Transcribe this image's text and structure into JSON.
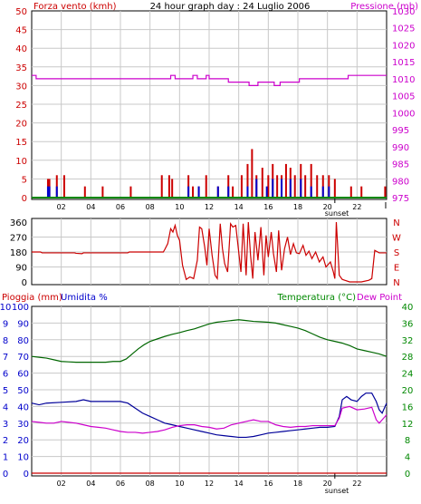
{
  "header": {
    "left_title": "Forza vento (kmh)",
    "center_title": "24 hour graph day : 24 Luglio 2006",
    "right_title": "Pressione (mb)"
  },
  "colors": {
    "wind": "#cc0000",
    "pressure": "#cc00cc",
    "grid": "#c8c8c8",
    "temperature": "#006600",
    "dewpoint": "#cc00cc",
    "humidity": "#000099",
    "rain": "#cc0000",
    "green_axis": "#008800",
    "blue_axis": "#0000cc"
  },
  "chart_data": [
    {
      "type": "bar",
      "title": "24 hour graph day : 24 Luglio 2006",
      "ylabel_left": "Forza vento (kmh)",
      "ylabel_right": "Pressione (mb)",
      "ylim_left": [
        0,
        50
      ],
      "ylim_right": [
        975,
        1030
      ],
      "yticks_left": [
        "0",
        "5",
        "10",
        "15",
        "20",
        "25",
        "30",
        "35",
        "40",
        "45",
        "50"
      ],
      "yticks_right": [
        "975",
        "980",
        "985",
        "990",
        "995",
        "1000",
        "1005",
        "1010",
        "1015",
        "1020",
        "1025",
        "1030"
      ],
      "xlim": [
        0,
        24
      ],
      "xticks": [
        {
          "x": 2,
          "label": "02"
        },
        {
          "x": 4,
          "label": "04"
        },
        {
          "x": 6,
          "label": "06"
        },
        {
          "x": 8,
          "label": "08"
        },
        {
          "x": 10,
          "label": "10"
        },
        {
          "x": 12,
          "label": "12"
        },
        {
          "x": 14,
          "label": "14"
        },
        {
          "x": 16,
          "label": "16"
        },
        {
          "x": 18,
          "label": "18"
        },
        {
          "x": 20,
          "label": "20"
        },
        {
          "x": 22,
          "label": "22"
        }
      ],
      "end_label": "I",
      "sunset_label": "sunset",
      "sunset_hour": 20.5,
      "wind_gust": [
        [
          1.1,
          5
        ],
        [
          1.2,
          5
        ],
        [
          1.7,
          6
        ],
        [
          2.2,
          6
        ],
        [
          3.6,
          3
        ],
        [
          4.8,
          3
        ],
        [
          6.7,
          3
        ],
        [
          8.8,
          6
        ],
        [
          9.3,
          6
        ],
        [
          9.5,
          5
        ],
        [
          10.6,
          6
        ],
        [
          10.9,
          3
        ],
        [
          11.3,
          3
        ],
        [
          11.8,
          6
        ],
        [
          12.6,
          3
        ],
        [
          13.3,
          6
        ],
        [
          13.6,
          3
        ],
        [
          14.2,
          6
        ],
        [
          14.6,
          9
        ],
        [
          14.9,
          13
        ],
        [
          15.2,
          6
        ],
        [
          15.6,
          8
        ],
        [
          16.0,
          6
        ],
        [
          16.3,
          9
        ],
        [
          16.6,
          6
        ],
        [
          16.9,
          6
        ],
        [
          17.2,
          9
        ],
        [
          17.5,
          8
        ],
        [
          17.8,
          6
        ],
        [
          18.2,
          9
        ],
        [
          18.5,
          6
        ],
        [
          18.9,
          9
        ],
        [
          19.3,
          6
        ],
        [
          19.7,
          6
        ],
        [
          20.1,
          6
        ],
        [
          20.5,
          5
        ],
        [
          21.6,
          3
        ],
        [
          22.3,
          3
        ],
        [
          23.9,
          3
        ]
      ],
      "wind_avg": [
        [
          1.1,
          3
        ],
        [
          1.2,
          3
        ],
        [
          1.7,
          3
        ],
        [
          10.6,
          3
        ],
        [
          11.3,
          3
        ],
        [
          12.6,
          3
        ],
        [
          13.3,
          3
        ],
        [
          14.6,
          3
        ],
        [
          15.2,
          5
        ],
        [
          15.9,
          3
        ],
        [
          16.3,
          5
        ],
        [
          16.9,
          5
        ],
        [
          17.5,
          5
        ],
        [
          18.2,
          5
        ],
        [
          18.9,
          3
        ],
        [
          19.7,
          3
        ],
        [
          20.1,
          3
        ]
      ],
      "pressure": [
        [
          0,
          1011
        ],
        [
          0.3,
          1010
        ],
        [
          8.8,
          1010
        ],
        [
          9.4,
          1011
        ],
        [
          9.7,
          1010
        ],
        [
          10.6,
          1010
        ],
        [
          10.9,
          1011
        ],
        [
          11.2,
          1010
        ],
        [
          11.8,
          1011
        ],
        [
          12.0,
          1010
        ],
        [
          13.2,
          1010
        ],
        [
          13.3,
          1009
        ],
        [
          14.6,
          1009
        ],
        [
          14.7,
          1008
        ],
        [
          15.2,
          1008
        ],
        [
          15.3,
          1009
        ],
        [
          16.3,
          1009
        ],
        [
          16.4,
          1008
        ],
        [
          16.7,
          1008
        ],
        [
          16.8,
          1009
        ],
        [
          18.0,
          1009
        ],
        [
          18.1,
          1010
        ],
        [
          21.3,
          1010
        ],
        [
          21.4,
          1011
        ],
        [
          24,
          1011
        ]
      ]
    },
    {
      "type": "line",
      "ylabel_left": "",
      "ylim": [
        0,
        360
      ],
      "yticks_left": [
        "0",
        "90",
        "180",
        "270",
        "360"
      ],
      "right_labels": [
        "N",
        "W",
        "S",
        "E",
        "N"
      ],
      "wind_direction": [
        [
          0,
          180
        ],
        [
          0.6,
          180
        ],
        [
          0.7,
          175
        ],
        [
          2.9,
          175
        ],
        [
          3.0,
          172
        ],
        [
          3.4,
          170
        ],
        [
          3.5,
          175
        ],
        [
          6.5,
          175
        ],
        [
          6.6,
          180
        ],
        [
          8.9,
          180
        ],
        [
          9.0,
          195
        ],
        [
          9.2,
          230
        ],
        [
          9.4,
          320
        ],
        [
          9.55,
          300
        ],
        [
          9.7,
          340
        ],
        [
          9.85,
          280
        ],
        [
          10.0,
          250
        ],
        [
          10.2,
          100
        ],
        [
          10.45,
          15
        ],
        [
          10.7,
          30
        ],
        [
          10.95,
          20
        ],
        [
          11.2,
          130
        ],
        [
          11.35,
          330
        ],
        [
          11.5,
          320
        ],
        [
          11.7,
          210
        ],
        [
          11.85,
          100
        ],
        [
          12.0,
          320
        ],
        [
          12.2,
          160
        ],
        [
          12.4,
          40
        ],
        [
          12.55,
          20
        ],
        [
          12.75,
          350
        ],
        [
          12.9,
          200
        ],
        [
          13.05,
          110
        ],
        [
          13.25,
          60
        ],
        [
          13.45,
          350
        ],
        [
          13.6,
          330
        ],
        [
          13.8,
          340
        ],
        [
          14.0,
          180
        ],
        [
          14.15,
          60
        ],
        [
          14.3,
          350
        ],
        [
          14.5,
          40
        ],
        [
          14.65,
          360
        ],
        [
          14.8,
          160
        ],
        [
          14.95,
          20
        ],
        [
          15.1,
          300
        ],
        [
          15.3,
          130
        ],
        [
          15.5,
          330
        ],
        [
          15.7,
          40
        ],
        [
          15.85,
          280
        ],
        [
          16.0,
          150
        ],
        [
          16.2,
          300
        ],
        [
          16.35,
          170
        ],
        [
          16.55,
          60
        ],
        [
          16.7,
          310
        ],
        [
          16.9,
          70
        ],
        [
          17.1,
          200
        ],
        [
          17.3,
          270
        ],
        [
          17.5,
          165
        ],
        [
          17.7,
          230
        ],
        [
          17.9,
          175
        ],
        [
          18.1,
          170
        ],
        [
          18.35,
          220
        ],
        [
          18.55,
          160
        ],
        [
          18.75,
          185
        ],
        [
          18.95,
          140
        ],
        [
          19.2,
          180
        ],
        [
          19.45,
          120
        ],
        [
          19.7,
          150
        ],
        [
          19.9,
          90
        ],
        [
          20.2,
          120
        ],
        [
          20.4,
          60
        ],
        [
          20.5,
          20
        ],
        [
          20.6,
          360
        ],
        [
          20.8,
          40
        ],
        [
          21.0,
          15
        ],
        [
          21.5,
          0
        ],
        [
          22.3,
          0
        ],
        [
          22.8,
          10
        ],
        [
          23.0,
          20
        ],
        [
          23.2,
          190
        ],
        [
          23.5,
          175
        ],
        [
          24,
          175
        ]
      ]
    },
    {
      "type": "line",
      "ylabel_left": "Pioggia (mm)",
      "ylabel_left2": "Umidita %",
      "ylabel_right": "Temperatura (°C)",
      "ylabel_right2": "Dew Point",
      "ylim_left": [
        0,
        100
      ],
      "ylim_right": [
        0,
        40
      ],
      "yticks_outer": [
        "0",
        "1",
        "2",
        "3",
        "4",
        "5",
        "6",
        "7",
        "8",
        "9",
        "10"
      ],
      "yticks_left": [
        "0",
        "10",
        "20",
        "30",
        "40",
        "50",
        "60",
        "70",
        "80",
        "90",
        "100"
      ],
      "yticks_right": [
        "0",
        "4",
        "8",
        "12",
        "16",
        "20",
        "24",
        "28",
        "32",
        "36",
        "40"
      ],
      "sunset_label": "sunset",
      "temperature": [
        [
          0,
          28
        ],
        [
          0.5,
          27.8
        ],
        [
          1.0,
          27.6
        ],
        [
          1.5,
          27.2
        ],
        [
          2.0,
          26.8
        ],
        [
          2.5,
          26.7
        ],
        [
          3.0,
          26.6
        ],
        [
          3.5,
          26.6
        ],
        [
          4.0,
          26.6
        ],
        [
          4.5,
          26.6
        ],
        [
          5.0,
          26.6
        ],
        [
          5.5,
          26.8
        ],
        [
          6.0,
          26.8
        ],
        [
          6.4,
          27.4
        ],
        [
          6.8,
          28.6
        ],
        [
          7.2,
          29.8
        ],
        [
          7.6,
          30.8
        ],
        [
          8.0,
          31.6
        ],
        [
          8.5,
          32.2
        ],
        [
          9.0,
          32.8
        ],
        [
          9.5,
          33.3
        ],
        [
          10.0,
          33.7
        ],
        [
          10.5,
          34.2
        ],
        [
          11.0,
          34.6
        ],
        [
          11.5,
          35.2
        ],
        [
          12.0,
          35.8
        ],
        [
          12.5,
          36.2
        ],
        [
          13.0,
          36.4
        ],
        [
          13.5,
          36.6
        ],
        [
          14.0,
          36.8
        ],
        [
          14.5,
          36.6
        ],
        [
          15.0,
          36.4
        ],
        [
          15.5,
          36.3
        ],
        [
          16.0,
          36.2
        ],
        [
          16.5,
          36.0
        ],
        [
          17.0,
          35.6
        ],
        [
          17.5,
          35.2
        ],
        [
          18.0,
          34.8
        ],
        [
          18.5,
          34.2
        ],
        [
          19.0,
          33.4
        ],
        [
          19.5,
          32.6
        ],
        [
          20.0,
          32.0
        ],
        [
          20.5,
          31.6
        ],
        [
          21.0,
          31.2
        ],
        [
          21.5,
          30.6
        ],
        [
          22.0,
          29.8
        ],
        [
          22.5,
          29.4
        ],
        [
          23.0,
          29.0
        ],
        [
          23.5,
          28.6
        ],
        [
          24,
          28.0
        ]
      ],
      "humidity": [
        [
          0,
          42
        ],
        [
          0.5,
          41
        ],
        [
          1.0,
          42
        ],
        [
          2.0,
          42.5
        ],
        [
          3.0,
          43
        ],
        [
          3.5,
          44
        ],
        [
          4.0,
          43
        ],
        [
          5.0,
          43
        ],
        [
          6.0,
          43
        ],
        [
          6.5,
          42
        ],
        [
          7.0,
          39
        ],
        [
          7.5,
          36
        ],
        [
          8.0,
          34
        ],
        [
          8.5,
          32
        ],
        [
          9.0,
          30
        ],
        [
          9.5,
          29
        ],
        [
          10.0,
          28
        ],
        [
          10.5,
          27
        ],
        [
          11.0,
          26
        ],
        [
          11.5,
          25
        ],
        [
          12.0,
          24
        ],
        [
          12.5,
          23
        ],
        [
          13.0,
          22.5
        ],
        [
          13.5,
          22
        ],
        [
          14.0,
          21.5
        ],
        [
          14.5,
          21.5
        ],
        [
          15.0,
          22
        ],
        [
          15.5,
          23
        ],
        [
          16.0,
          24
        ],
        [
          16.5,
          24.5
        ],
        [
          17.0,
          25
        ],
        [
          17.5,
          25.5
        ],
        [
          18.0,
          26
        ],
        [
          18.5,
          26.5
        ],
        [
          19.0,
          27
        ],
        [
          19.5,
          27.5
        ],
        [
          20.0,
          27.5
        ],
        [
          20.5,
          28
        ],
        [
          20.8,
          34
        ],
        [
          21.0,
          44
        ],
        [
          21.3,
          46
        ],
        [
          21.6,
          44
        ],
        [
          22.0,
          43
        ],
        [
          22.3,
          46
        ],
        [
          22.6,
          48
        ],
        [
          23.0,
          48
        ],
        [
          23.3,
          43
        ],
        [
          23.5,
          38
        ],
        [
          23.7,
          36
        ],
        [
          24,
          42
        ]
      ],
      "dewpoint": [
        [
          0,
          12.4
        ],
        [
          0.5,
          12.2
        ],
        [
          1.0,
          12.0
        ],
        [
          1.5,
          12.0
        ],
        [
          2.0,
          12.4
        ],
        [
          2.5,
          12.2
        ],
        [
          3.0,
          12.0
        ],
        [
          3.5,
          11.6
        ],
        [
          4.0,
          11.2
        ],
        [
          4.5,
          11.0
        ],
        [
          5.0,
          10.8
        ],
        [
          5.5,
          10.4
        ],
        [
          6.0,
          10.0
        ],
        [
          6.5,
          9.8
        ],
        [
          7.0,
          9.8
        ],
        [
          7.5,
          9.6
        ],
        [
          8.0,
          9.8
        ],
        [
          8.5,
          10.0
        ],
        [
          9.0,
          10.4
        ],
        [
          9.5,
          11.0
        ],
        [
          10.0,
          11.4
        ],
        [
          10.5,
          11.6
        ],
        [
          11.0,
          11.6
        ],
        [
          11.5,
          11.2
        ],
        [
          12.0,
          11.0
        ],
        [
          12.5,
          10.6
        ],
        [
          13.0,
          10.8
        ],
        [
          13.5,
          11.6
        ],
        [
          14.0,
          12.0
        ],
        [
          14.5,
          12.4
        ],
        [
          15.0,
          12.8
        ],
        [
          15.5,
          12.4
        ],
        [
          16.0,
          12.4
        ],
        [
          16.5,
          11.6
        ],
        [
          17.0,
          11.2
        ],
        [
          17.5,
          11.0
        ],
        [
          18.0,
          11.2
        ],
        [
          18.5,
          11.2
        ],
        [
          19.0,
          11.4
        ],
        [
          19.5,
          11.4
        ],
        [
          20.0,
          11.4
        ],
        [
          20.5,
          11.4
        ],
        [
          20.8,
          13.2
        ],
        [
          21.0,
          15.6
        ],
        [
          21.5,
          16.0
        ],
        [
          22.0,
          15.2
        ],
        [
          22.5,
          15.4
        ],
        [
          23.0,
          15.8
        ],
        [
          23.3,
          12.8
        ],
        [
          23.5,
          12.0
        ],
        [
          23.7,
          12.8
        ],
        [
          24,
          14.0
        ]
      ],
      "rain": [
        [
          0,
          0
        ],
        [
          24,
          0
        ]
      ]
    }
  ]
}
